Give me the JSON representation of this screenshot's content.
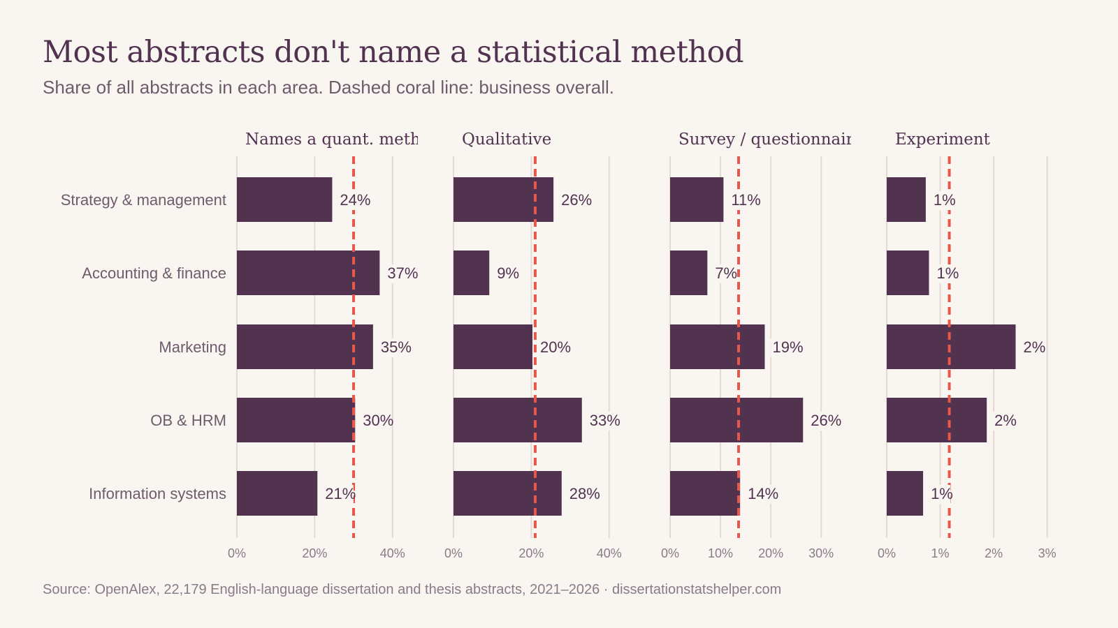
{
  "header": {
    "title": "Most abstracts don't name a statistical method",
    "subtitle": "Share of all abstracts in each area. Dashed coral line: business overall."
  },
  "footer": {
    "source": "Source: OpenAlex, 22,179 English-language dissertation and thesis abstracts, 2021–2026  ·  dissertationstatshelper.com"
  },
  "colors": {
    "background": "#f9f6f2",
    "bar": "#51324f",
    "reference_line": "#e8574a",
    "gridline": "#e4d9d3"
  },
  "chart_data": {
    "type": "bar",
    "orientation": "horizontal",
    "categories": [
      "Strategy & management",
      "Accounting & finance",
      "Marketing",
      "OB & HRM",
      "Information systems"
    ],
    "panels": [
      {
        "name": "Names a quant. meth",
        "values": [
          24.5,
          36.7,
          35.0,
          30.4,
          20.7
        ],
        "labels": [
          "24%",
          "37%",
          "35%",
          "30%",
          "21%"
        ],
        "reference": 30.0,
        "xlim": [
          0,
          44
        ],
        "ticks": [
          0,
          20,
          40
        ],
        "tick_labels": [
          "0%",
          "20%",
          "40%"
        ]
      },
      {
        "name": "Qualitative",
        "values": [
          25.7,
          9.2,
          20.3,
          33.0,
          27.8
        ],
        "labels": [
          "26%",
          "9%",
          "20%",
          "33%",
          "28%"
        ],
        "reference": 21.0,
        "xlim": [
          0,
          44
        ],
        "ticks": [
          0,
          20,
          40
        ],
        "tick_labels": [
          "0%",
          "20%",
          "40%"
        ]
      },
      {
        "name": "Survey / questionnair",
        "values": [
          10.6,
          7.4,
          18.8,
          26.4,
          13.9
        ],
        "labels": [
          "11%",
          "7%",
          "19%",
          "26%",
          "14%"
        ],
        "reference": 13.6,
        "xlim": [
          0,
          34
        ],
        "ticks": [
          0,
          10,
          20,
          30
        ],
        "tick_labels": [
          "0%",
          "10%",
          "20%",
          "30%"
        ]
      },
      {
        "name": "Experiment",
        "values": [
          0.73,
          0.79,
          2.41,
          1.87,
          0.68
        ],
        "labels": [
          "1%",
          "1%",
          "2%",
          "2%",
          "1%"
        ],
        "reference": 1.17,
        "xlim": [
          0,
          3.2
        ],
        "ticks": [
          0,
          1,
          2,
          3
        ],
        "tick_labels": [
          "0%",
          "1%",
          "2%",
          "3%"
        ]
      }
    ]
  }
}
